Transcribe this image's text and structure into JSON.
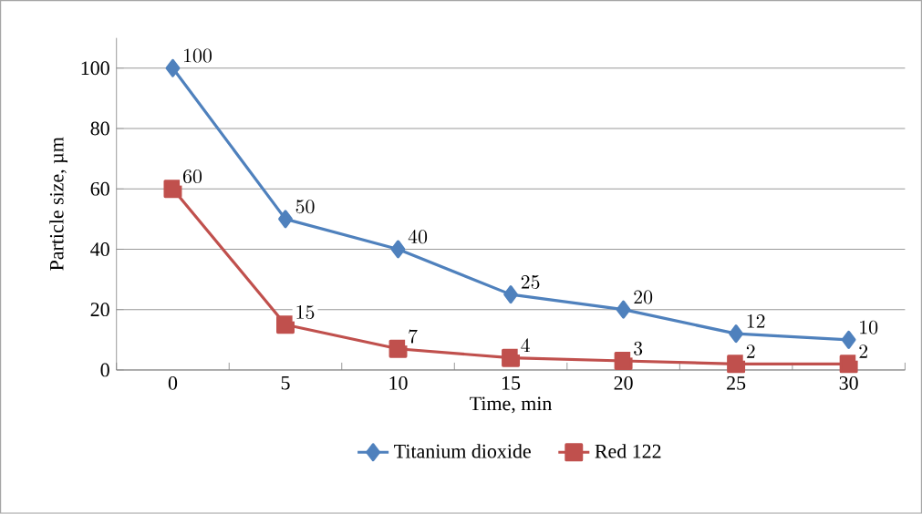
{
  "chart_data": {
    "type": "line",
    "xlabel": "Time, min",
    "ylabel": "Particle size, µm",
    "categories": [
      "0",
      "5",
      "10",
      "15",
      "20",
      "25",
      "30"
    ],
    "series": [
      {
        "name": "Titanium dioxide",
        "color": "#4f81bd",
        "marker": "diamond",
        "values": [
          100,
          50,
          40,
          25,
          20,
          12,
          10
        ]
      },
      {
        "name": "Red 122",
        "color": "#c0504d",
        "marker": "square",
        "values": [
          60,
          15,
          7,
          4,
          3,
          2,
          2
        ]
      }
    ],
    "ylim": [
      0,
      110
    ],
    "yticks": [
      0,
      20,
      40,
      60,
      80,
      100
    ],
    "grid": "y",
    "legend": "bottom",
    "data_labels": true
  }
}
